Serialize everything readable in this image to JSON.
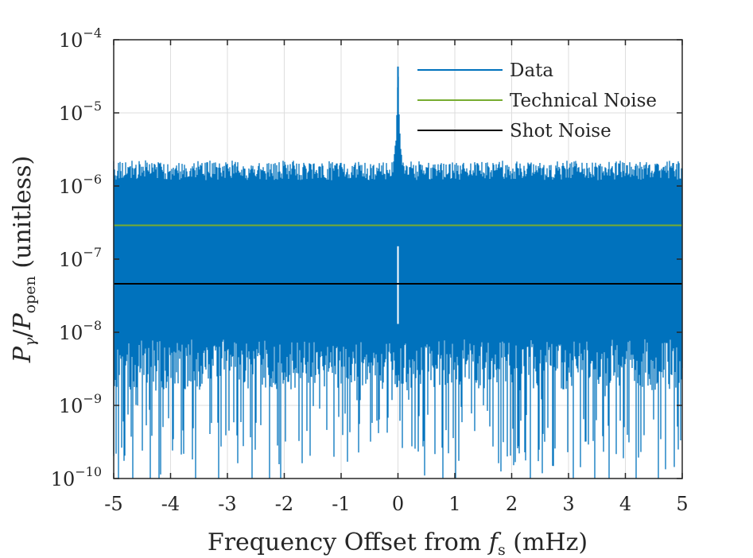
{
  "chart_data": {
    "type": "line",
    "title": "",
    "xlabel": "Frequency Offset from",
    "xlabel_var": "f",
    "xlabel_sub": "s",
    "xlabel_unit": "(mHz)",
    "ylabel_var1": "P",
    "ylabel_sub1": "γ",
    "ylabel_slash": "/",
    "ylabel_var2": "P",
    "ylabel_sub2": "open",
    "ylabel_unit": "(unitless)",
    "xlim": [
      -5,
      5
    ],
    "ylim": [
      1e-10,
      0.0001
    ],
    "yscale": "log",
    "grid": true,
    "x_ticks": [
      -5,
      -4,
      -3,
      -2,
      -1,
      0,
      1,
      2,
      3,
      4,
      5
    ],
    "x_tick_labels": [
      "-5",
      "-4",
      "-3",
      "-2",
      "-1",
      "0",
      "1",
      "2",
      "3",
      "4",
      "5"
    ],
    "y_ticks": [
      {
        "base": "10",
        "exp": "−4",
        "value": 0.0001
      },
      {
        "base": "10",
        "exp": "−5",
        "value": 1e-05
      },
      {
        "base": "10",
        "exp": "−6",
        "value": 1e-06
      },
      {
        "base": "10",
        "exp": "−7",
        "value": 1e-07
      },
      {
        "base": "10",
        "exp": "−8",
        "value": 1e-08
      },
      {
        "base": "10",
        "exp": "−9",
        "value": 1e-09
      },
      {
        "base": "10",
        "exp": "−10",
        "value": 1e-10
      }
    ],
    "legend_position": "top-right",
    "series": [
      {
        "name": "Data",
        "color": "#0072BD",
        "description": "noisy spectrum; band roughly 2e-9 to 1.5e-6 with sparse dips to 1e-10, peak near 0 mHz",
        "noise_upper": 1.2e-06,
        "noise_lower": 8e-09,
        "spike_upper": 2e-06,
        "spike_lower": 2e-10,
        "peak_x": 0,
        "peak_y": 4.3e-05
      },
      {
        "name": "Technical Noise",
        "color": "#77AC30",
        "y": 2.9e-07
      },
      {
        "name": "Shot Noise",
        "color": "#000000",
        "y": 4.6e-08
      }
    ]
  }
}
